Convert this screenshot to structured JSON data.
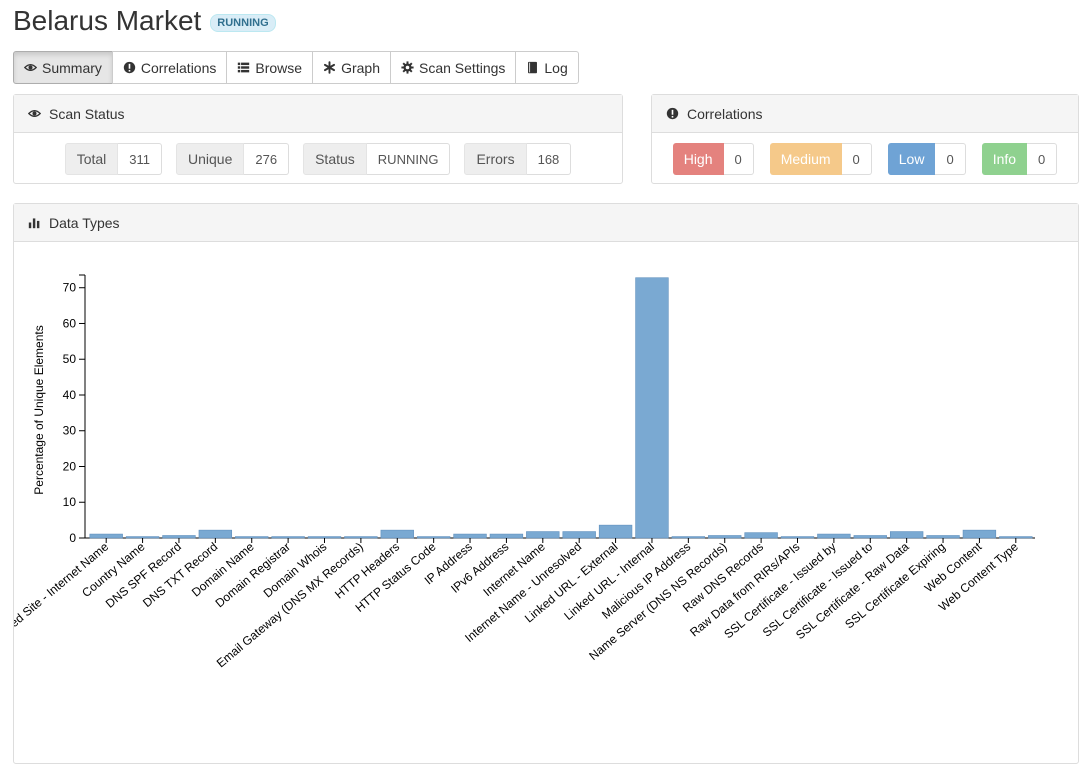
{
  "header": {
    "title": "Belarus Market",
    "badge": "RUNNING"
  },
  "tabs": [
    {
      "label": "Summary",
      "icon": "eye-icon",
      "active": true
    },
    {
      "label": "Correlations",
      "icon": "exclamation-circle-icon"
    },
    {
      "label": "Browse",
      "icon": "list-icon"
    },
    {
      "label": "Graph",
      "icon": "asterisk-icon"
    },
    {
      "label": "Scan Settings",
      "icon": "gear-icon"
    },
    {
      "label": "Log",
      "icon": "book-icon"
    }
  ],
  "scan_status": {
    "title": "Scan Status",
    "stats": [
      {
        "label": "Total",
        "value": "311"
      },
      {
        "label": "Unique",
        "value": "276"
      },
      {
        "label": "Status",
        "value": "RUNNING"
      },
      {
        "label": "Errors",
        "value": "168"
      }
    ]
  },
  "correlations": {
    "title": "Correlations",
    "items": [
      {
        "label": "High",
        "value": "0",
        "color": "#d9534f"
      },
      {
        "label": "Medium",
        "value": "0",
        "color": "#f0ad4e"
      },
      {
        "label": "Low",
        "value": "0",
        "color": "#337ab7"
      },
      {
        "label": "Info",
        "value": "0",
        "color": "#5cb85c"
      }
    ]
  },
  "data_types": {
    "title": "Data Types"
  },
  "colors": {
    "bar": "#7aa9d2",
    "bar_stroke": "#5f8fbd"
  },
  "chart_data": {
    "type": "bar",
    "ylabel": "Percentage of Unique Elements",
    "xlabel": "",
    "ylim": [
      0,
      73
    ],
    "yticks": [
      0,
      10,
      20,
      30,
      40,
      50,
      60,
      70
    ],
    "categories": [
      "Co-Hosted Site - Internet Name",
      "Country Name",
      "DNS SPF Record",
      "DNS TXT Record",
      "Domain Name",
      "Domain Registrar",
      "Domain Whois",
      "Email Gateway (DNS MX Records)",
      "HTTP Headers",
      "HTTP Status Code",
      "IP Address",
      "IPv6 Address",
      "Internet Name",
      "Internet Name - Unresolved",
      "Linked URL - External",
      "Linked URL - Internal",
      "Malicious IP Address",
      "Name Server (DNS NS Records)",
      "Raw DNS Records",
      "Raw Data from RIRs/APIs",
      "SSL Certificate - Issued by",
      "SSL Certificate - Issued to",
      "SSL Certificate - Raw Data",
      "SSL Certificate Expiring",
      "Web Content",
      "Web Content Type"
    ],
    "values": [
      1.1,
      0.4,
      0.7,
      2.2,
      0.4,
      0.4,
      0.4,
      0.4,
      2.2,
      0.4,
      1.1,
      1.1,
      1.8,
      1.8,
      3.6,
      72.8,
      0.4,
      0.7,
      1.5,
      0.4,
      1.1,
      0.7,
      1.8,
      0.7,
      2.2,
      0.4
    ]
  }
}
